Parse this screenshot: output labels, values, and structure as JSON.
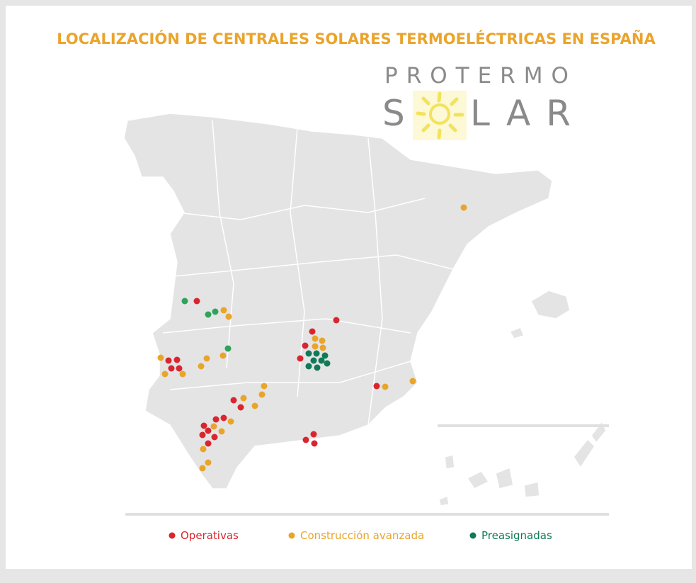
{
  "title": "LOCALIZACIÓN DE CENTRALES SOLARES TERMOELÉCTRICAS EN ESPAÑA",
  "logo": {
    "line1": "PROTERMO",
    "left": "S",
    "right": "LAR"
  },
  "legend": [
    {
      "name": "Operativas",
      "color": "#d9262e"
    },
    {
      "name": "Construcción avanzada",
      "color": "#e9a52a"
    },
    {
      "name": "Preasignadas",
      "color": "#107a57"
    }
  ]
}
